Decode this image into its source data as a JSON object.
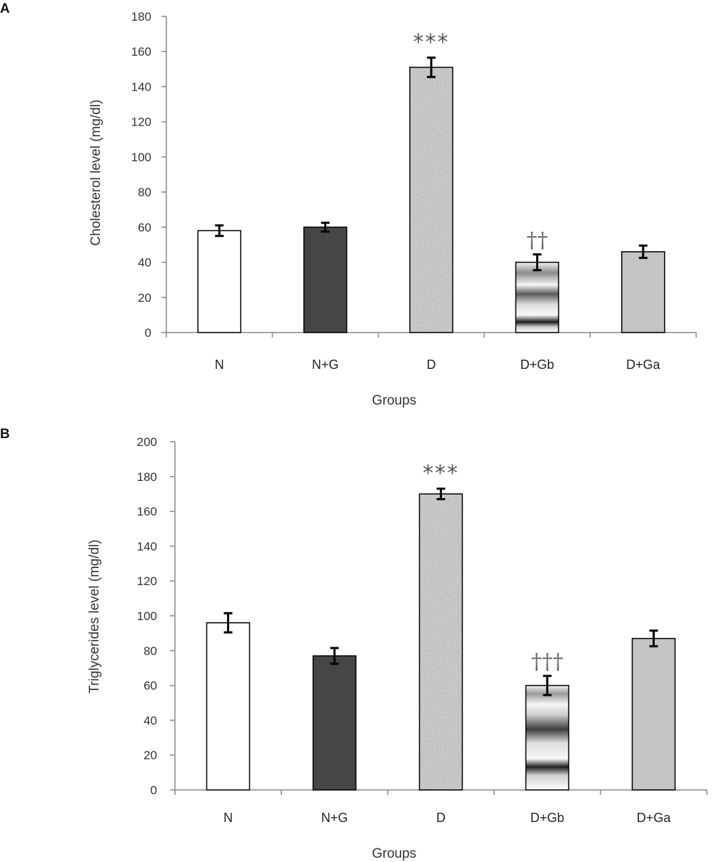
{
  "chart_data": [
    {
      "type": "bar",
      "panel_label": "A",
      "categories": [
        "N",
        "N+G",
        "D",
        "D+Gb",
        "D+Ga"
      ],
      "values": [
        58,
        60,
        151,
        40,
        46
      ],
      "errors": [
        3,
        2.5,
        5.5,
        4.5,
        3.5
      ],
      "annotations": [
        "",
        "",
        "***",
        "",
        ""
      ],
      "dagger_annotations": [
        "",
        "",
        "",
        "††",
        ""
      ],
      "xlabel": "Groups",
      "ylabel": "Cholesterol level (mg/dl)",
      "ylim": [
        0,
        180
      ],
      "yticks": [
        "0",
        "20",
        "40",
        "60",
        "80",
        "100",
        "120",
        "140",
        "160",
        "180"
      ],
      "grid": false,
      "bar_styles": [
        "white",
        "dark-gray",
        "speckled-gray",
        "gradient-bands",
        "light-gray"
      ]
    },
    {
      "type": "bar",
      "panel_label": "B",
      "categories": [
        "N",
        "N+G",
        "D",
        "D+Gb",
        "D+Ga"
      ],
      "values": [
        96,
        77,
        170,
        60,
        87
      ],
      "errors": [
        5.5,
        4.5,
        3,
        5.5,
        4.5
      ],
      "annotations": [
        "",
        "",
        "***",
        "",
        ""
      ],
      "dagger_annotations": [
        "",
        "",
        "",
        "†††",
        ""
      ],
      "xlabel": "Groups",
      "ylabel": "Triglycerides level (mg/dl)",
      "ylim": [
        0,
        200
      ],
      "yticks": [
        "0",
        "20",
        "40",
        "60",
        "80",
        "100",
        "120",
        "140",
        "160",
        "180",
        "200"
      ],
      "grid": false,
      "bar_styles": [
        "white",
        "dark-gray",
        "speckled-gray",
        "gradient-bands",
        "light-gray"
      ]
    }
  ],
  "colors": {
    "white": "#ffffff",
    "dark_gray": "#464646",
    "light_gray": "#c4c4c4",
    "speckle_base": "#c8c8c8",
    "axis": "#888888",
    "error_bar": "#000000"
  }
}
